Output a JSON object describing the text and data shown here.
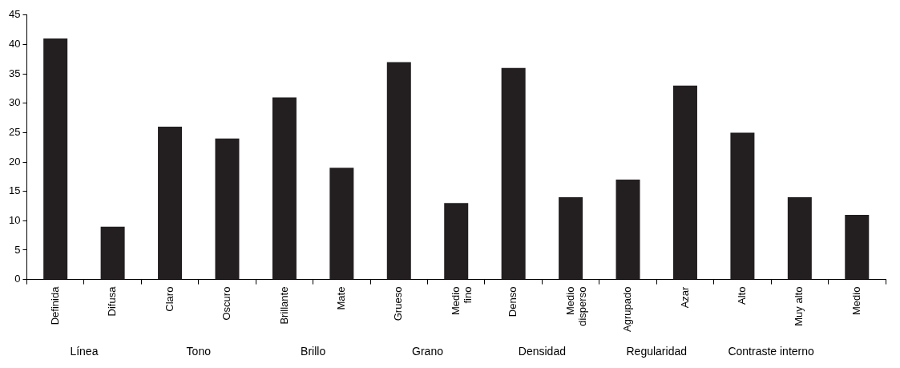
{
  "chart_data": {
    "type": "bar",
    "categories": [
      "Definida",
      "Difusa",
      "Claro",
      "Oscuro",
      "Brillante",
      "Mate",
      "Grueso",
      "Medio\nfino",
      "Denso",
      "Medio\ndisperso",
      "Agrupado",
      "Azar",
      "Alto",
      "Muy alto",
      "Medio"
    ],
    "values": [
      41,
      9,
      26,
      24,
      31,
      19,
      37,
      13,
      36,
      14,
      17,
      33,
      25,
      14,
      11
    ],
    "color": "#231f20",
    "ylim": [
      0,
      45
    ],
    "yticks": [
      0,
      5,
      10,
      15,
      20,
      25,
      30,
      35,
      40,
      45
    ],
    "grid": false,
    "legend": false,
    "annotations": [
      "Línea",
      "Tono",
      "Brillo",
      "Grano",
      "Densidad",
      "Regularidad",
      "Contraste interno"
    ]
  }
}
